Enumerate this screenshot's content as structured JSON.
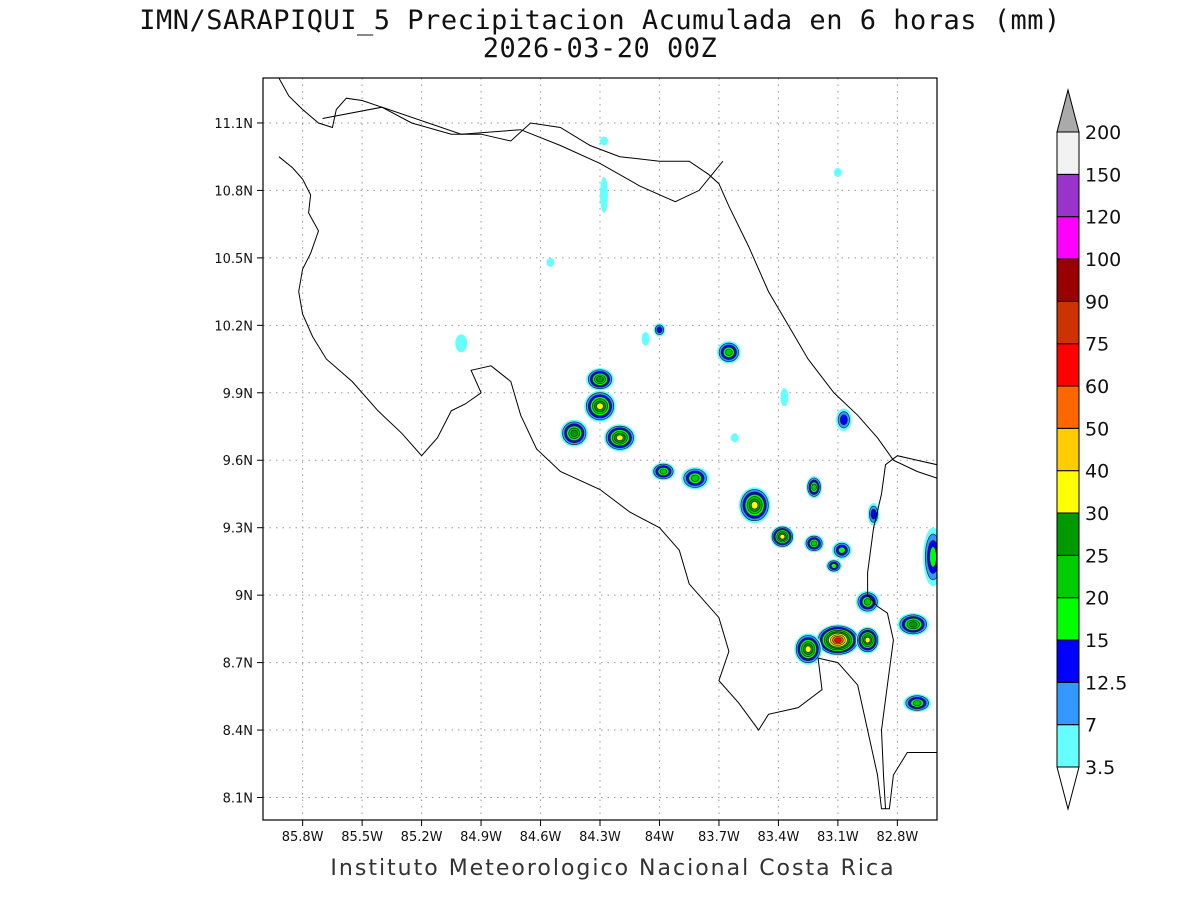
{
  "title": {
    "line1": "IMN/SARAPIQUI_5 Precipitacion Acumulada en 6 horas (mm)",
    "line2": "2026-03-20 00Z"
  },
  "footer": "Instituto Meteorologico Nacional Costa Rica",
  "map": {
    "lon_range": [
      -86.0,
      -82.6
    ],
    "lat_range": [
      8.0,
      11.3
    ],
    "lon_ticks": [
      {
        "value": -85.8,
        "label": "85.8W"
      },
      {
        "value": -85.5,
        "label": "85.5W"
      },
      {
        "value": -85.2,
        "label": "85.2W"
      },
      {
        "value": -84.9,
        "label": "84.9W"
      },
      {
        "value": -84.6,
        "label": "84.6W"
      },
      {
        "value": -84.3,
        "label": "84.3W"
      },
      {
        "value": -84.0,
        "label": "84W"
      },
      {
        "value": -83.7,
        "label": "83.7W"
      },
      {
        "value": -83.4,
        "label": "83.4W"
      },
      {
        "value": -83.1,
        "label": "83.1W"
      },
      {
        "value": -82.8,
        "label": "82.8W"
      }
    ],
    "lat_ticks": [
      {
        "value": 11.1,
        "label": "11.1N"
      },
      {
        "value": 10.8,
        "label": "10.8N"
      },
      {
        "value": 10.5,
        "label": "10.5N"
      },
      {
        "value": 10.2,
        "label": "10.2N"
      },
      {
        "value": 9.9,
        "label": "9.9N"
      },
      {
        "value": 9.6,
        "label": "9.6N"
      },
      {
        "value": 9.3,
        "label": "9.3N"
      },
      {
        "value": 9.0,
        "label": "9N"
      },
      {
        "value": 8.7,
        "label": "8.7N"
      },
      {
        "value": 8.4,
        "label": "8.4N"
      },
      {
        "value": 8.1,
        "label": "8.1N"
      }
    ],
    "grid": true,
    "coastline": [
      [
        -85.92,
        11.3
      ],
      [
        -85.87,
        11.22
      ],
      [
        -85.8,
        11.16
      ],
      [
        -85.72,
        11.1
      ],
      [
        -85.65,
        11.08
      ],
      [
        -85.63,
        11.16
      ],
      [
        -85.58,
        11.21
      ],
      [
        -85.5,
        11.2
      ],
      [
        -85.4,
        11.17
      ],
      [
        -85.25,
        11.1
      ],
      [
        -85.05,
        11.05
      ],
      [
        -84.9,
        11.05
      ],
      [
        -84.75,
        11.02
      ],
      [
        -84.65,
        11.1
      ],
      [
        -84.5,
        11.08
      ],
      [
        -84.35,
        11.0
      ],
      [
        -84.2,
        10.95
      ],
      [
        -84.0,
        10.93
      ],
      [
        -83.85,
        10.93
      ],
      [
        -83.75,
        10.87
      ],
      [
        -83.7,
        10.83
      ],
      [
        -83.65,
        10.73
      ],
      [
        -83.55,
        10.55
      ],
      [
        -83.45,
        10.35
      ],
      [
        -83.35,
        10.2
      ],
      [
        -83.25,
        10.05
      ],
      [
        -83.12,
        9.9
      ],
      [
        -83.0,
        9.8
      ],
      [
        -82.9,
        9.7
      ],
      [
        -82.82,
        9.6
      ],
      [
        -82.7,
        9.55
      ],
      [
        -82.6,
        9.52
      ]
    ],
    "coastline_pacific": [
      [
        -85.92,
        10.95
      ],
      [
        -85.85,
        10.9
      ],
      [
        -85.8,
        10.85
      ],
      [
        -85.76,
        10.78
      ],
      [
        -85.77,
        10.7
      ],
      [
        -85.72,
        10.62
      ],
      [
        -85.76,
        10.52
      ],
      [
        -85.8,
        10.45
      ],
      [
        -85.82,
        10.35
      ],
      [
        -85.8,
        10.25
      ],
      [
        -85.75,
        10.15
      ],
      [
        -85.68,
        10.05
      ],
      [
        -85.55,
        9.95
      ],
      [
        -85.42,
        9.82
      ],
      [
        -85.3,
        9.72
      ],
      [
        -85.2,
        9.62
      ],
      [
        -85.12,
        9.7
      ],
      [
        -85.05,
        9.82
      ],
      [
        -84.98,
        9.85
      ],
      [
        -84.9,
        9.9
      ],
      [
        -84.95,
        10.0
      ],
      [
        -84.85,
        10.02
      ],
      [
        -84.75,
        9.95
      ],
      [
        -84.7,
        9.8
      ],
      [
        -84.62,
        9.65
      ],
      [
        -84.5,
        9.55
      ],
      [
        -84.3,
        9.47
      ],
      [
        -84.15,
        9.37
      ],
      [
        -84.0,
        9.3
      ],
      [
        -83.9,
        9.2
      ],
      [
        -83.85,
        9.05
      ],
      [
        -83.7,
        8.9
      ],
      [
        -83.65,
        8.75
      ],
      [
        -83.7,
        8.62
      ],
      [
        -83.6,
        8.52
      ],
      [
        -83.5,
        8.4
      ],
      [
        -83.45,
        8.47
      ],
      [
        -83.3,
        8.5
      ],
      [
        -83.18,
        8.58
      ],
      [
        -83.2,
        8.72
      ],
      [
        -83.1,
        8.7
      ],
      [
        -83.0,
        8.6
      ],
      [
        -82.95,
        8.4
      ],
      [
        -82.9,
        8.2
      ],
      [
        -82.88,
        8.05
      ],
      [
        -82.84,
        8.05
      ],
      [
        -82.82,
        8.2
      ],
      [
        -82.75,
        8.3
      ],
      [
        -82.6,
        8.3
      ]
    ],
    "border_north": [
      [
        -85.7,
        11.12
      ],
      [
        -85.4,
        11.17
      ],
      [
        -85.0,
        11.05
      ],
      [
        -84.7,
        11.07
      ],
      [
        -84.5,
        11.0
      ],
      [
        -84.3,
        10.92
      ],
      [
        -84.1,
        10.82
      ],
      [
        -83.92,
        10.75
      ],
      [
        -83.8,
        10.8
      ],
      [
        -83.68,
        10.93
      ]
    ],
    "border_south": [
      [
        -82.6,
        9.58
      ],
      [
        -82.7,
        9.6
      ],
      [
        -82.8,
        9.62
      ],
      [
        -82.86,
        9.58
      ],
      [
        -82.88,
        9.45
      ],
      [
        -82.92,
        9.3
      ],
      [
        -82.95,
        9.1
      ],
      [
        -82.95,
        9.0
      ],
      [
        -82.9,
        8.95
      ],
      [
        -82.85,
        8.92
      ],
      [
        -82.82,
        8.8
      ],
      [
        -82.85,
        8.6
      ],
      [
        -82.88,
        8.4
      ],
      [
        -82.87,
        8.2
      ],
      [
        -82.86,
        8.05
      ]
    ],
    "precip_blobs": [
      {
        "lon": -84.3,
        "lat": 9.84,
        "rx": 0.08,
        "ry": 0.07,
        "max": 35
      },
      {
        "lon": -84.3,
        "lat": 9.96,
        "rx": 0.07,
        "ry": 0.05,
        "max": 28
      },
      {
        "lon": -84.2,
        "lat": 9.7,
        "rx": 0.08,
        "ry": 0.06,
        "max": 35
      },
      {
        "lon": -84.43,
        "lat": 9.72,
        "rx": 0.07,
        "ry": 0.06,
        "max": 26
      },
      {
        "lon": -83.98,
        "lat": 9.55,
        "rx": 0.06,
        "ry": 0.04,
        "max": 22
      },
      {
        "lon": -83.82,
        "lat": 9.52,
        "rx": 0.07,
        "ry": 0.05,
        "max": 24
      },
      {
        "lon": -83.65,
        "lat": 10.08,
        "rx": 0.06,
        "ry": 0.05,
        "max": 22
      },
      {
        "lon": -83.52,
        "lat": 9.4,
        "rx": 0.08,
        "ry": 0.08,
        "max": 36
      },
      {
        "lon": -83.38,
        "lat": 9.26,
        "rx": 0.06,
        "ry": 0.05,
        "max": 33
      },
      {
        "lon": -83.22,
        "lat": 9.23,
        "rx": 0.05,
        "ry": 0.04,
        "max": 22
      },
      {
        "lon": -83.22,
        "lat": 9.48,
        "rx": 0.04,
        "ry": 0.05,
        "max": 20
      },
      {
        "lon": -83.08,
        "lat": 9.2,
        "rx": 0.05,
        "ry": 0.04,
        "max": 18
      },
      {
        "lon": -83.1,
        "lat": 8.8,
        "rx": 0.11,
        "ry": 0.07,
        "max": 65
      },
      {
        "lon": -83.25,
        "lat": 8.76,
        "rx": 0.07,
        "ry": 0.07,
        "max": 35
      },
      {
        "lon": -82.95,
        "lat": 8.8,
        "rx": 0.06,
        "ry": 0.06,
        "max": 32
      },
      {
        "lon": -82.95,
        "lat": 8.97,
        "rx": 0.06,
        "ry": 0.05,
        "max": 22
      },
      {
        "lon": -82.72,
        "lat": 8.87,
        "rx": 0.08,
        "ry": 0.05,
        "max": 26
      },
      {
        "lon": -82.7,
        "lat": 8.52,
        "rx": 0.07,
        "ry": 0.04,
        "max": 22
      },
      {
        "lon": -82.62,
        "lat": 9.17,
        "rx": 0.05,
        "ry": 0.13,
        "max": 16
      },
      {
        "lon": -82.92,
        "lat": 9.36,
        "rx": 0.03,
        "ry": 0.05,
        "max": 14
      },
      {
        "lon": -83.07,
        "lat": 9.78,
        "rx": 0.04,
        "ry": 0.05,
        "max": 14
      },
      {
        "lon": -84.0,
        "lat": 10.18,
        "rx": 0.03,
        "ry": 0.03,
        "max": 13
      },
      {
        "lon": -83.12,
        "lat": 9.13,
        "rx": 0.04,
        "ry": 0.03,
        "max": 16
      },
      {
        "lon": -84.28,
        "lat": 10.78,
        "rx": 0.02,
        "ry": 0.08,
        "max": 5
      },
      {
        "lon": -84.28,
        "lat": 11.02,
        "rx": 0.02,
        "ry": 0.02,
        "max": 4
      },
      {
        "lon": -83.1,
        "lat": 10.88,
        "rx": 0.02,
        "ry": 0.02,
        "max": 4
      },
      {
        "lon": -84.55,
        "lat": 10.48,
        "rx": 0.02,
        "ry": 0.02,
        "max": 4
      },
      {
        "lon": -85.0,
        "lat": 10.12,
        "rx": 0.03,
        "ry": 0.04,
        "max": 5
      },
      {
        "lon": -83.37,
        "lat": 9.88,
        "rx": 0.02,
        "ry": 0.04,
        "max": 4
      },
      {
        "lon": -83.62,
        "lat": 9.7,
        "rx": 0.02,
        "ry": 0.02,
        "max": 4
      },
      {
        "lon": -84.07,
        "lat": 10.14,
        "rx": 0.02,
        "ry": 0.03,
        "max": 5
      }
    ]
  },
  "colorbar": {
    "levels": [
      {
        "label": "3.5",
        "color": "#66ffff",
        "threshold": 3.5
      },
      {
        "label": "7",
        "color": "#3399ff",
        "threshold": 7
      },
      {
        "label": "12.5",
        "color": "#0000ff",
        "threshold": 12.5
      },
      {
        "label": "15",
        "color": "#00ff00",
        "threshold": 15
      },
      {
        "label": "20",
        "color": "#00cc00",
        "threshold": 20
      },
      {
        "label": "25",
        "color": "#009900",
        "threshold": 25
      },
      {
        "label": "30",
        "color": "#ffff00",
        "threshold": 30
      },
      {
        "label": "40",
        "color": "#ffcc00",
        "threshold": 40
      },
      {
        "label": "50",
        "color": "#ff6600",
        "threshold": 50
      },
      {
        "label": "60",
        "color": "#ff0000",
        "threshold": 60
      },
      {
        "label": "75",
        "color": "#cc3300",
        "threshold": 75
      },
      {
        "label": "90",
        "color": "#990000",
        "threshold": 90
      },
      {
        "label": "100",
        "color": "#ff00ff",
        "threshold": 100
      },
      {
        "label": "120",
        "color": "#9933cc",
        "threshold": 120
      },
      {
        "label": "150",
        "color": "#f2f2f2",
        "threshold": 150
      },
      {
        "label": "200",
        "color": "#aaaaaa",
        "threshold": 200
      }
    ]
  }
}
